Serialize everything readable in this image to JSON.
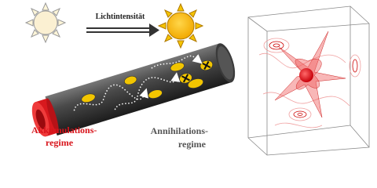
{
  "header": {
    "arrow_label": "Lichtintensität"
  },
  "labels": {
    "left": {
      "lines": [
        "Akkumulations-",
        "regime"
      ]
    },
    "right": {
      "lines": [
        "Annihilations-",
        "regime"
      ]
    }
  }
}
